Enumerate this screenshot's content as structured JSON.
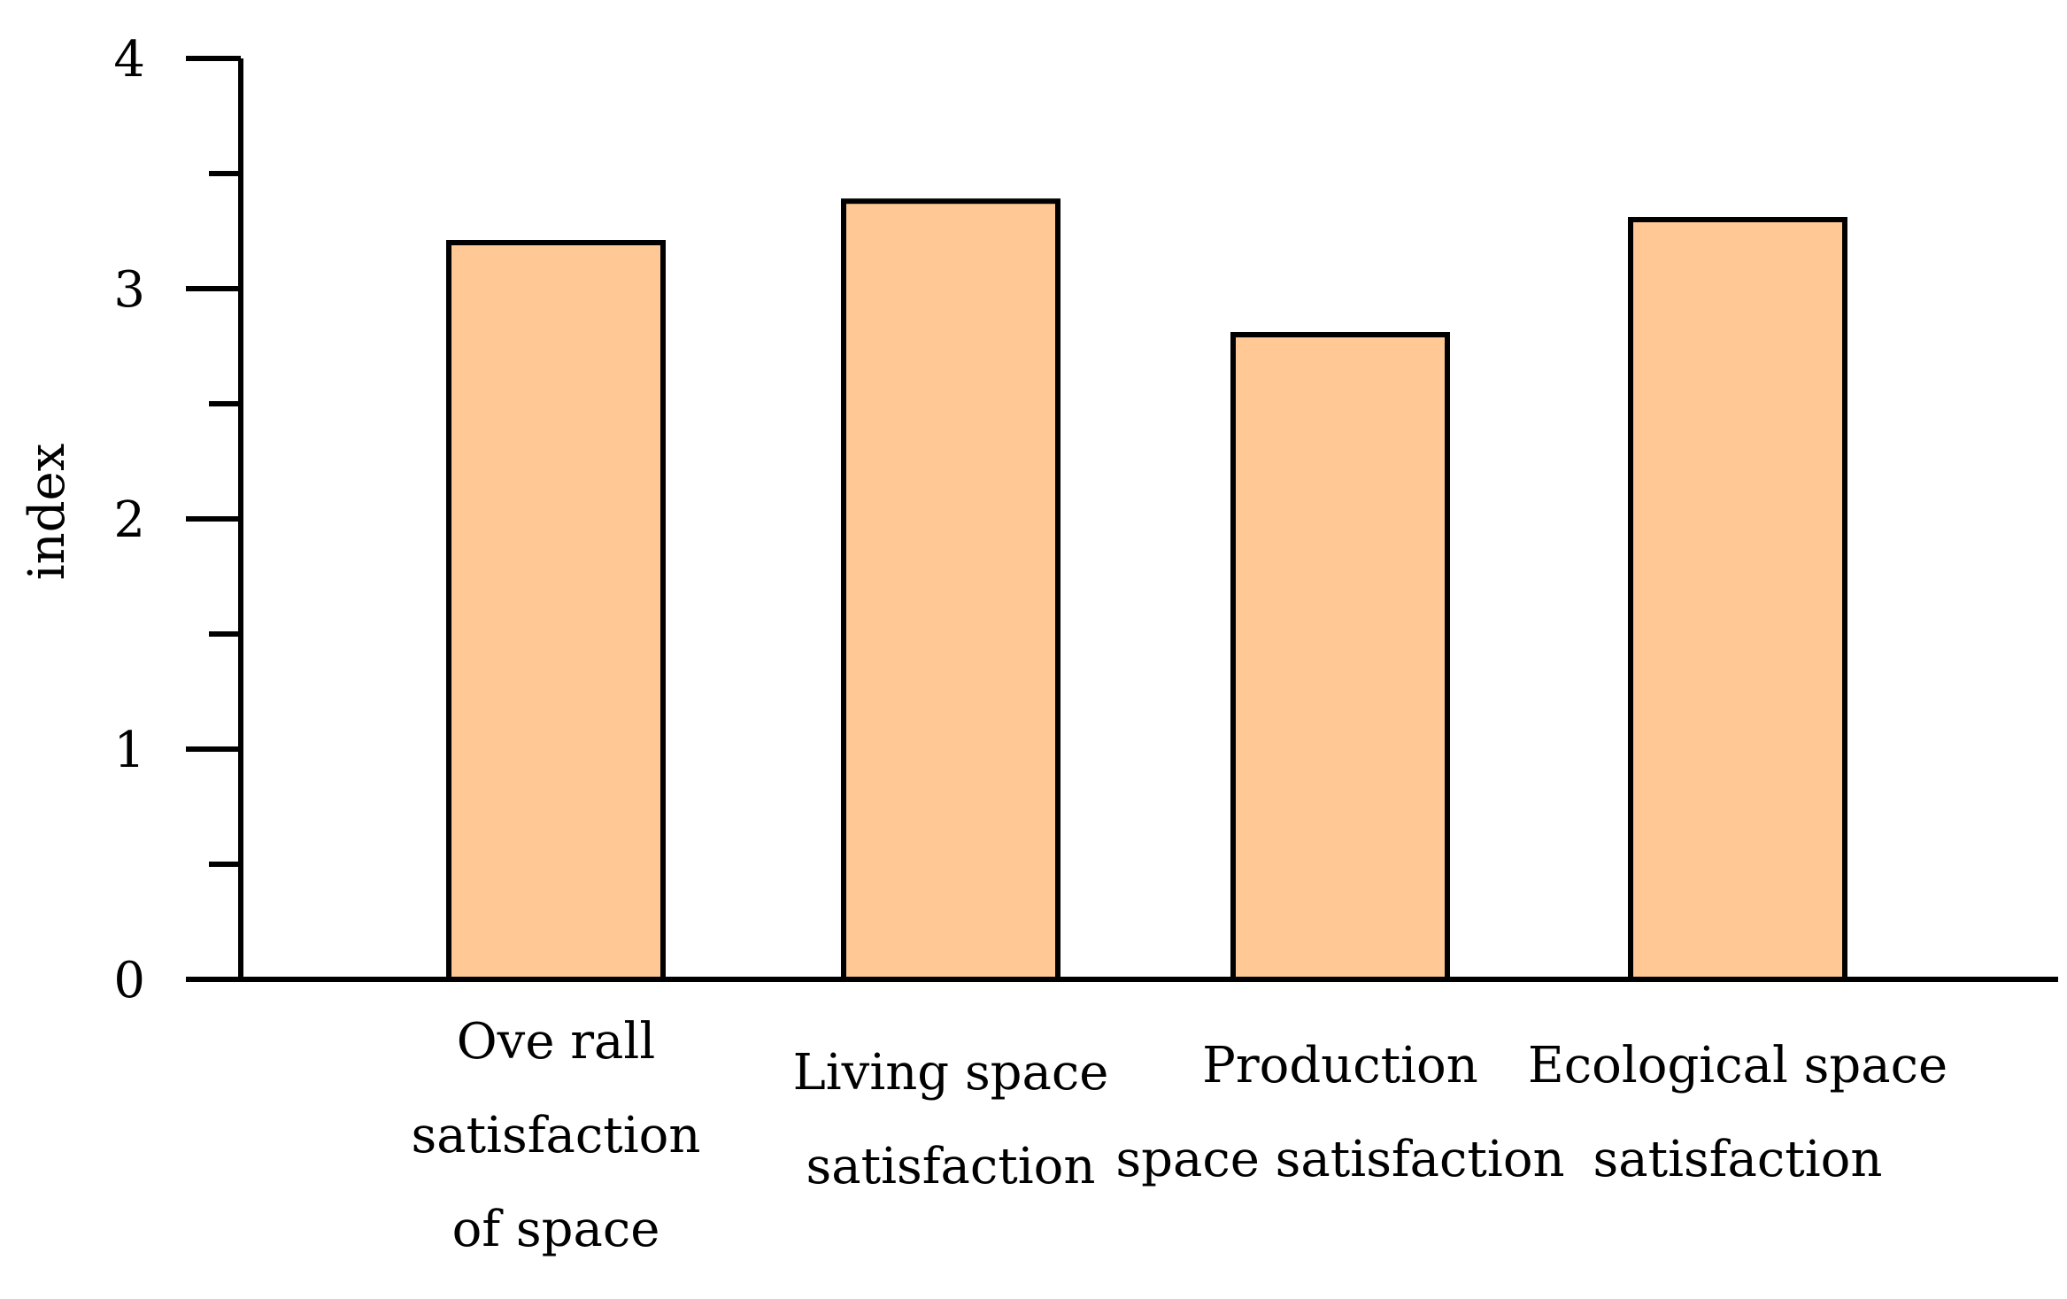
{
  "chart_data": {
    "type": "bar",
    "categories": [
      [
        "Ove rall",
        "satisfaction",
        "of space"
      ],
      [
        "Living space",
        "satisfaction"
      ],
      [
        "Production",
        "space satisfaction"
      ],
      [
        "Ecological space",
        "satisfaction"
      ]
    ],
    "values": [
      3.2,
      3.38,
      2.8,
      3.3
    ],
    "title": "",
    "xlabel": "",
    "ylabel": "index",
    "ylim": [
      0,
      4
    ],
    "yticks": [
      0,
      1,
      2,
      3,
      4
    ],
    "minor_ytick_step": 0.5,
    "grid": false,
    "legend": "none",
    "bar_color": "#FFC895",
    "bar_edge_color": "#000000"
  }
}
